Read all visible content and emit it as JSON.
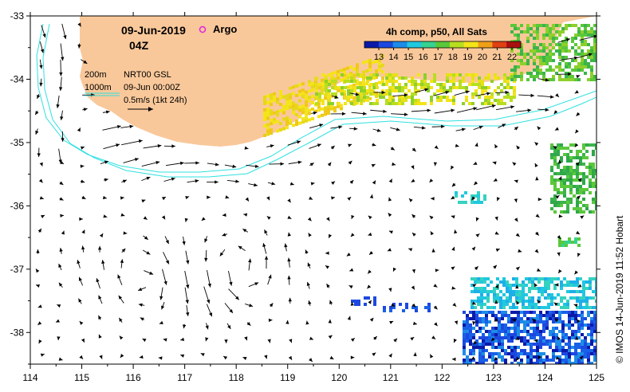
{
  "date_label": "09-Jun-2019",
  "time_label": "04Z",
  "argo_label": "Argo",
  "colorbar": {
    "title": "4h comp, p50, All Sats",
    "tick_values": [
      13,
      14,
      15,
      16,
      17,
      18,
      19,
      20,
      21,
      22
    ],
    "stops": [
      "#0a1aa8",
      "#1d48e0",
      "#1d8ce8",
      "#20c8e0",
      "#35d290",
      "#5ac83a",
      "#b8de20",
      "#f4e418",
      "#f0a018",
      "#e04014",
      "#a81010"
    ]
  },
  "isobaths": {
    "shallow": "200m",
    "deep": "1000m",
    "color": "#30e0e0"
  },
  "product": {
    "name": "NRT00 GSL",
    "valid": "09-Jun 00:00Z",
    "scale": "0.5m/s (1kt 24h)"
  },
  "credit": "© IMOS 14-Jun-2019 11:52 Hobart",
  "colors": {
    "land": "#f9c89a",
    "argo": "#e020e0",
    "cyan": "#30e0e0"
  },
  "map": {
    "lon_ticks": [
      114,
      115,
      116,
      117,
      118,
      119,
      120,
      121,
      122,
      123,
      124,
      125
    ],
    "lat_ticks": [
      -33,
      -34,
      -35,
      -36,
      -37,
      -38
    ],
    "lon_range": [
      114,
      125
    ],
    "lat_range": [
      -38.5,
      -33
    ]
  }
}
